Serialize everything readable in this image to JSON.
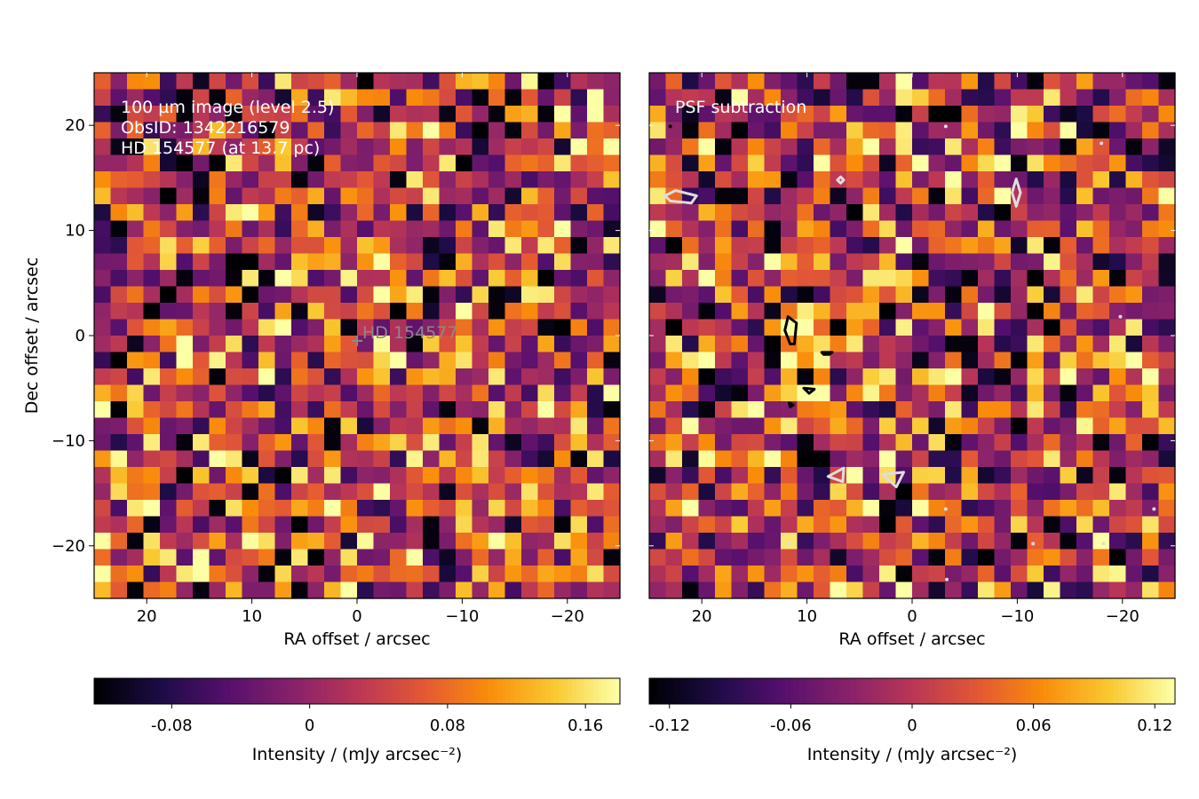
{
  "chart_data": [
    {
      "type": "heatmap",
      "title": "",
      "annotations": [
        "100 µm image (level 2.5)",
        "ObsID: 1342216579",
        "HD 154577 (at 13.7 pc)"
      ],
      "star_label": "HD 154577",
      "xlabel": "RA offset / arcsec",
      "ylabel": "Dec offset / arcsec",
      "xlim": [
        25,
        -25
      ],
      "ylim": [
        -25,
        25
      ],
      "xticks": [
        20,
        10,
        0,
        -10,
        -20
      ],
      "xtick_labels": [
        "20",
        "10",
        "0",
        "−10",
        "−20"
      ],
      "yticks": [
        20,
        10,
        0,
        -10,
        -20
      ],
      "ytick_labels": [
        "20",
        "10",
        "0",
        "−10",
        "−20"
      ],
      "grid_size": [
        32,
        32
      ],
      "seed": 7,
      "colormap": "inferno",
      "colorbar": {
        "label": "Intensity / (mJy arcsec⁻²)",
        "range": [
          -0.125,
          0.18
        ],
        "ticks": [
          -0.08,
          0,
          0.08,
          0.16
        ],
        "tick_labels": [
          "-0.08",
          "0",
          "0.08",
          "0.16"
        ]
      }
    },
    {
      "type": "heatmap",
      "title": "",
      "annotations": [
        "PSF subtraction"
      ],
      "xlabel": "RA offset / arcsec",
      "ylabel": "",
      "xlim": [
        25,
        -25
      ],
      "ylim": [
        -25,
        25
      ],
      "xticks": [
        20,
        10,
        0,
        -10,
        -20
      ],
      "xtick_labels": [
        "20",
        "10",
        "0",
        "−10",
        "−20"
      ],
      "grid_size": [
        32,
        32
      ],
      "seed": 23,
      "colormap": "inferno",
      "colorbar": {
        "label": "Intensity / (mJy arcsec⁻²)",
        "range": [
          -0.13,
          0.13
        ],
        "ticks": [
          -0.12,
          -0.06,
          0,
          0.06,
          0.12
        ],
        "tick_labels": [
          "-0.12",
          "-0.06",
          "0",
          "0.06",
          "0.12"
        ]
      }
    }
  ],
  "colors": {
    "frame": "#000000",
    "tick_inner": "#ffffff",
    "annotation": "#ffffff",
    "star_marker": "#8a8a8a",
    "contour_positive": "#000000",
    "contour_negative": "#dddddd"
  }
}
